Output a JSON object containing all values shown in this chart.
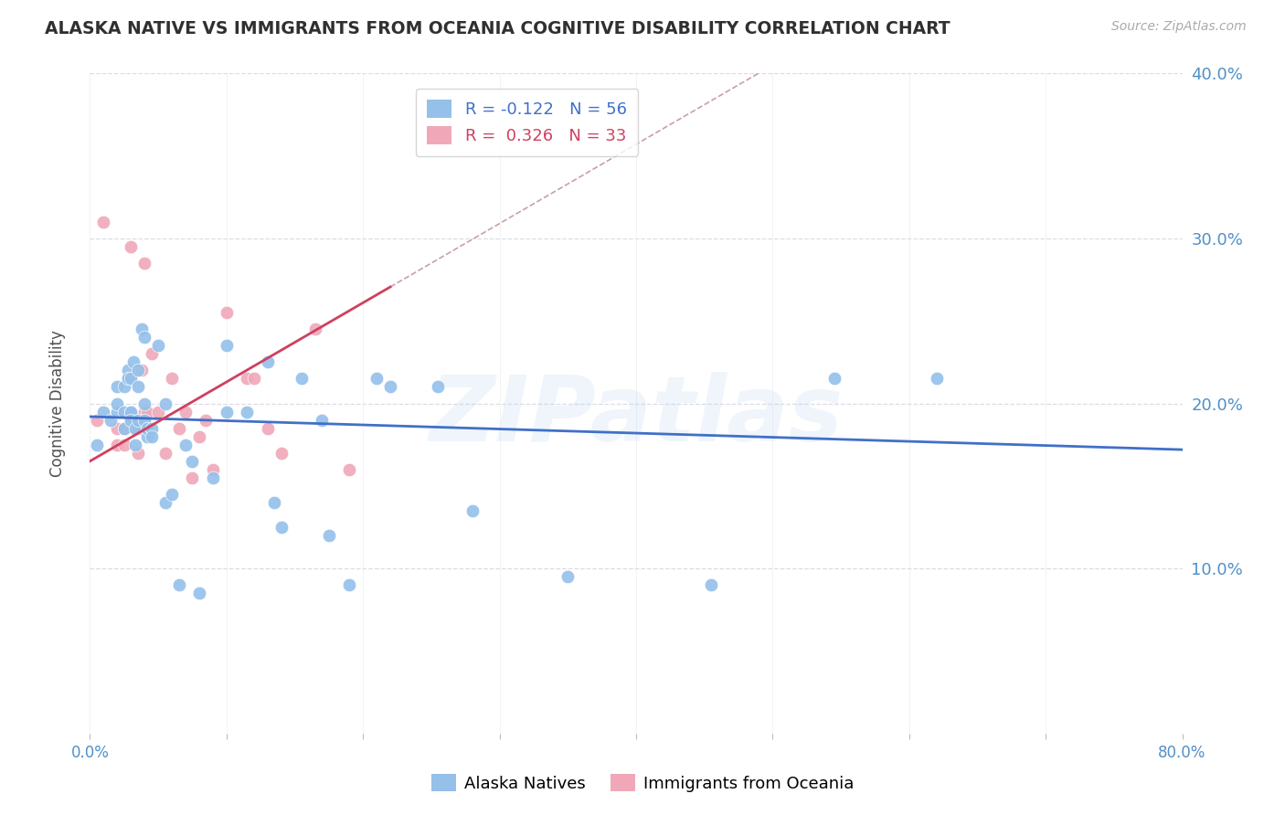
{
  "title": "ALASKA NATIVE VS IMMIGRANTS FROM OCEANIA COGNITIVE DISABILITY CORRELATION CHART",
  "source": "Source: ZipAtlas.com",
  "ylabel": "Cognitive Disability",
  "watermark": "ZIPatlas",
  "xlim": [
    0.0,
    0.8
  ],
  "ylim": [
    0.0,
    0.4
  ],
  "right_ytick_labels": [
    "40.0%",
    "30.0%",
    "20.0%",
    "10.0%"
  ],
  "right_ytick_positions": [
    0.4,
    0.3,
    0.2,
    0.1
  ],
  "bottom_xtick_labels": [
    "0.0%",
    "",
    "",
    "",
    "",
    "",
    "",
    "",
    "80.0%"
  ],
  "bottom_xtick_positions": [
    0.0,
    0.1,
    0.2,
    0.3,
    0.4,
    0.5,
    0.6,
    0.7,
    0.8
  ],
  "legend_blue_r": "-0.122",
  "legend_blue_n": "56",
  "legend_pink_r": "0.326",
  "legend_pink_n": "33",
  "blue_scatter_color": "#94C0EA",
  "pink_scatter_color": "#F0A8B8",
  "blue_line_color": "#4070C8",
  "pink_line_color": "#D04060",
  "pink_dashed_color": "#C8A0A8",
  "grid_color": "#DCDCE8",
  "title_color": "#303030",
  "axis_label_color": "#505050",
  "tick_label_color": "#5090C8",
  "alaska_natives_x": [
    0.005,
    0.01,
    0.015,
    0.02,
    0.02,
    0.02,
    0.025,
    0.025,
    0.025,
    0.028,
    0.028,
    0.03,
    0.03,
    0.03,
    0.03,
    0.032,
    0.033,
    0.033,
    0.035,
    0.035,
    0.035,
    0.038,
    0.04,
    0.04,
    0.04,
    0.042,
    0.042,
    0.045,
    0.045,
    0.05,
    0.055,
    0.055,
    0.06,
    0.065,
    0.07,
    0.075,
    0.08,
    0.09,
    0.1,
    0.1,
    0.115,
    0.13,
    0.135,
    0.14,
    0.155,
    0.17,
    0.175,
    0.19,
    0.21,
    0.22,
    0.255,
    0.28,
    0.35,
    0.455,
    0.545,
    0.62
  ],
  "alaska_natives_y": [
    0.175,
    0.195,
    0.19,
    0.195,
    0.21,
    0.2,
    0.195,
    0.21,
    0.185,
    0.22,
    0.215,
    0.195,
    0.195,
    0.19,
    0.215,
    0.225,
    0.185,
    0.175,
    0.22,
    0.21,
    0.19,
    0.245,
    0.19,
    0.24,
    0.2,
    0.18,
    0.185,
    0.185,
    0.18,
    0.235,
    0.2,
    0.14,
    0.145,
    0.09,
    0.175,
    0.165,
    0.085,
    0.155,
    0.235,
    0.195,
    0.195,
    0.225,
    0.14,
    0.125,
    0.215,
    0.19,
    0.12,
    0.09,
    0.215,
    0.21,
    0.21,
    0.135,
    0.095,
    0.09,
    0.215,
    0.215
  ],
  "oceania_x": [
    0.005,
    0.01,
    0.02,
    0.02,
    0.025,
    0.025,
    0.028,
    0.03,
    0.03,
    0.033,
    0.035,
    0.035,
    0.038,
    0.04,
    0.04,
    0.042,
    0.045,
    0.05,
    0.055,
    0.06,
    0.065,
    0.07,
    0.075,
    0.08,
    0.085,
    0.09,
    0.1,
    0.115,
    0.12,
    0.13,
    0.14,
    0.165,
    0.19
  ],
  "oceania_y": [
    0.19,
    0.31,
    0.175,
    0.185,
    0.185,
    0.175,
    0.215,
    0.19,
    0.295,
    0.185,
    0.17,
    0.185,
    0.22,
    0.195,
    0.285,
    0.195,
    0.23,
    0.195,
    0.17,
    0.215,
    0.185,
    0.195,
    0.155,
    0.18,
    0.19,
    0.16,
    0.255,
    0.215,
    0.215,
    0.185,
    0.17,
    0.245,
    0.16
  ],
  "blue_intercept": 0.192,
  "blue_slope": -0.025,
  "pink_intercept": 0.165,
  "pink_slope": 0.48
}
